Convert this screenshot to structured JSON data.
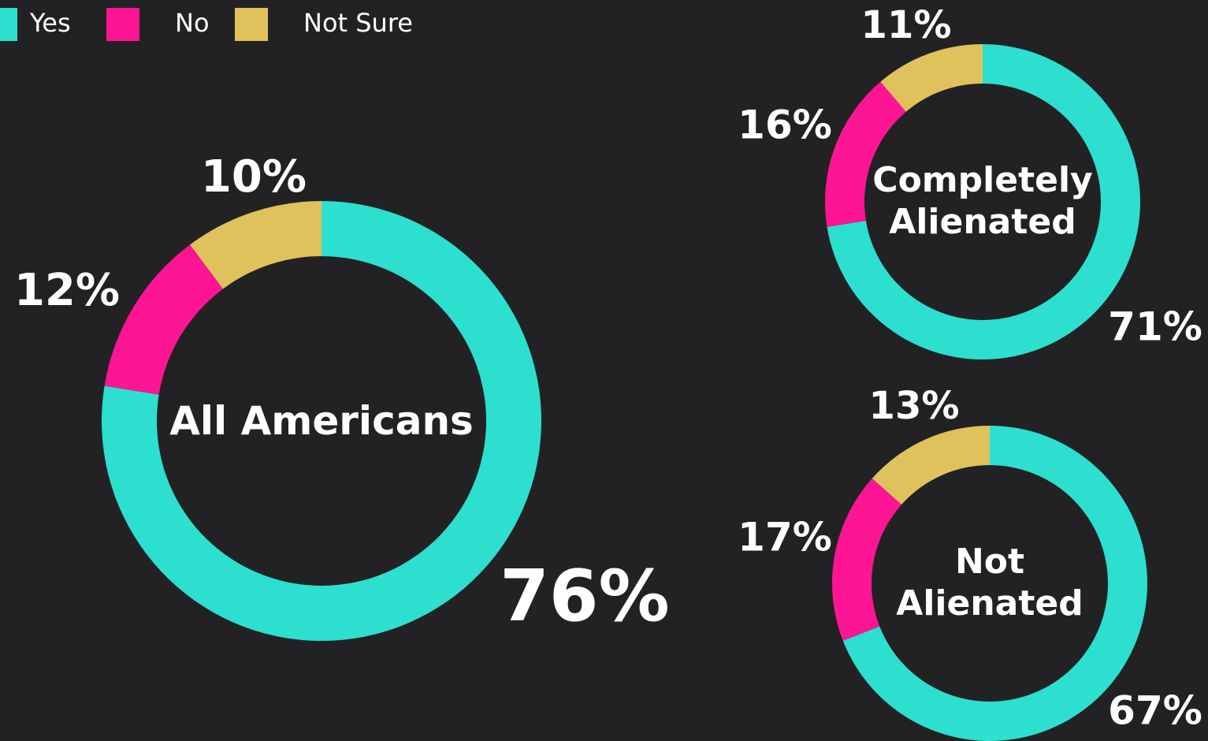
{
  "chart_data": [
    {
      "type": "pie",
      "title": "All Americans",
      "categories": [
        "Yes",
        "No",
        "Not Sure"
      ],
      "values": [
        76,
        12,
        10
      ],
      "value_labels": [
        "76%",
        "12%",
        "10%"
      ],
      "colors": [
        "#2ddfcf",
        "#fd1593",
        "#dfc25c"
      ]
    },
    {
      "type": "pie",
      "title": "Completely Alienated",
      "categories": [
        "Yes",
        "No",
        "Not Sure"
      ],
      "values": [
        71,
        16,
        11
      ],
      "value_labels": [
        "71%",
        "16%",
        "11%"
      ],
      "colors": [
        "#2ddfcf",
        "#fd1593",
        "#dfc25c"
      ]
    },
    {
      "type": "pie",
      "title": "Not Alienated",
      "categories": [
        "Yes",
        "No",
        "Not Sure"
      ],
      "values": [
        67,
        17,
        13
      ],
      "value_labels": [
        "67%",
        "17%",
        "13%"
      ],
      "colors": [
        "#2ddfcf",
        "#fd1593",
        "#dfc25c"
      ]
    }
  ]
}
